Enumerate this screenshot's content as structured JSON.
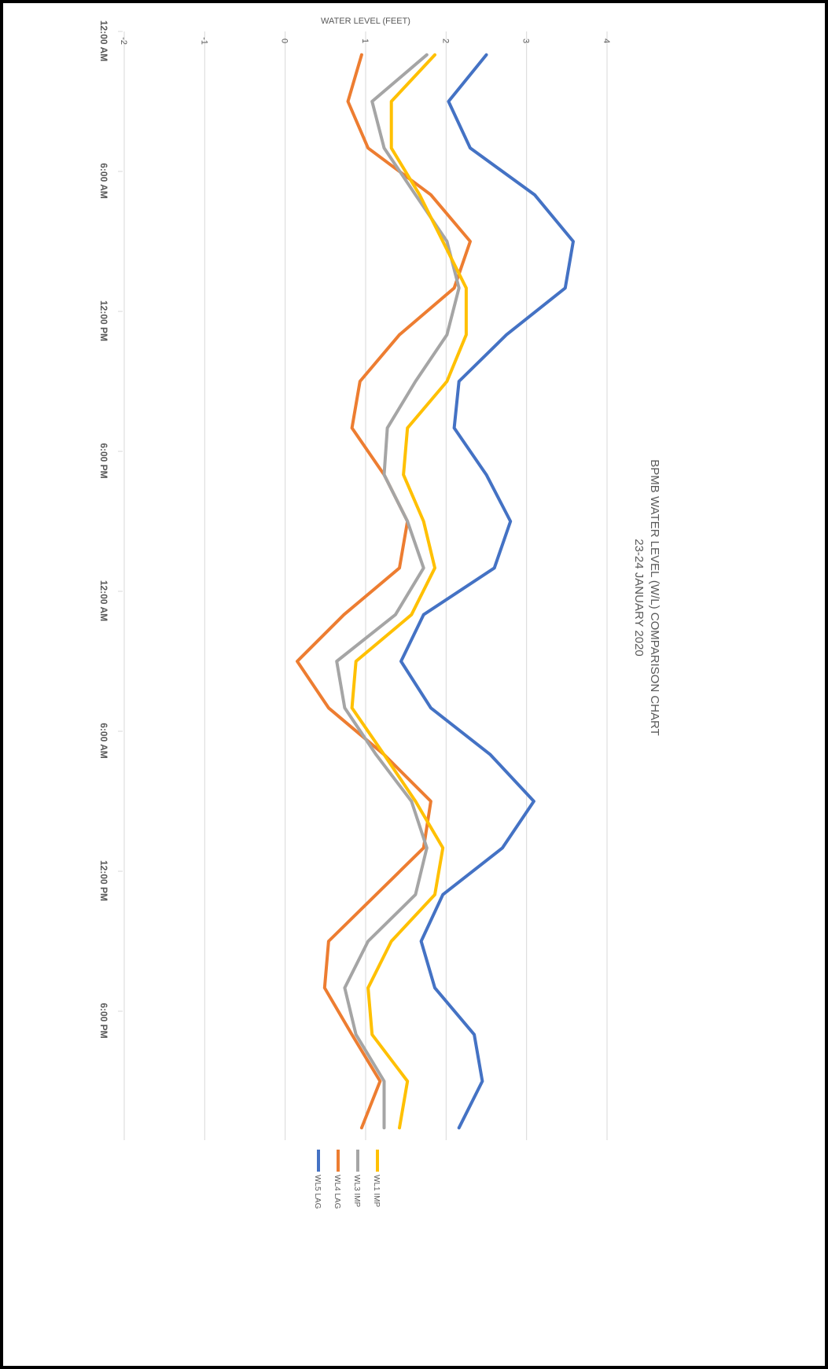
{
  "chart_data": {
    "type": "line",
    "title": "BPMB WATER LEVEL (W/L) COMPARISON CHART",
    "subtitle": "23-24 JANUARY 2020",
    "y_label": "WATER LEVEL (FEET)",
    "x": [
      1,
      3,
      5,
      7,
      9,
      11,
      13,
      15,
      17,
      19,
      21,
      23,
      25,
      27,
      29,
      31,
      33,
      35,
      37,
      39,
      41,
      43,
      45,
      47
    ],
    "xlim": [
      0,
      48
    ],
    "xticks": [
      {
        "value": 0,
        "label": "12:00 AM"
      },
      {
        "value": 6,
        "label": "6:00 AM"
      },
      {
        "value": 12,
        "label": "12:00 PM"
      },
      {
        "value": 18,
        "label": "6:00 PM"
      },
      {
        "value": 24,
        "label": "12:00 AM"
      },
      {
        "value": 30,
        "label": "6:00 AM"
      },
      {
        "value": 36,
        "label": "12:00 PM"
      },
      {
        "value": 42,
        "label": "6:00 PM"
      }
    ],
    "ylim": [
      -2,
      4
    ],
    "yticks": [
      -2,
      -1,
      0,
      1,
      2,
      3,
      4
    ],
    "grid": true,
    "legend": "bottom",
    "series": [
      {
        "name": "WL5 LAG",
        "color": "#4472c4",
        "values": [
          2.5,
          2.03,
          2.3,
          3.1,
          3.58,
          3.48,
          2.75,
          2.16,
          2.1,
          2.5,
          2.8,
          2.6,
          1.72,
          1.44,
          1.81,
          2.55,
          3.09,
          2.7,
          1.96,
          1.69,
          1.86,
          2.35,
          2.45,
          2.16
        ]
      },
      {
        "name": "WL4 LAG",
        "color": "#ed7d31",
        "values": [
          0.95,
          0.78,
          1.03,
          1.81,
          2.3,
          2.1,
          1.42,
          0.93,
          0.83,
          1.23,
          1.52,
          1.42,
          0.73,
          0.15,
          0.54,
          1.23,
          1.81,
          1.72,
          1.13,
          0.54,
          0.49,
          0.83,
          1.18,
          0.95
        ]
      },
      {
        "name": "WL3 IMP",
        "color": "#a5a5a5",
        "values": [
          1.76,
          1.08,
          1.23,
          1.62,
          2.01,
          2.16,
          2.01,
          1.62,
          1.27,
          1.23,
          1.52,
          1.72,
          1.37,
          0.64,
          0.74,
          1.13,
          1.57,
          1.76,
          1.62,
          1.03,
          0.74,
          0.88,
          1.23,
          1.23
        ]
      },
      {
        "name": "WL1 IMP",
        "color": "#ffc000",
        "values": [
          1.86,
          1.32,
          1.32,
          1.67,
          1.96,
          2.25,
          2.25,
          2.01,
          1.52,
          1.47,
          1.72,
          1.86,
          1.57,
          0.88,
          0.83,
          1.23,
          1.62,
          1.96,
          1.86,
          1.32,
          1.03,
          1.08,
          1.52,
          1.42
        ]
      }
    ]
  }
}
